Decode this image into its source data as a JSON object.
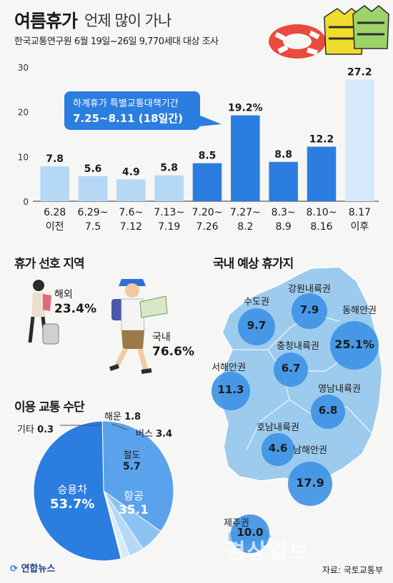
{
  "header": {
    "title_main": "여름휴가",
    "title_sub": "언제 많이 가나",
    "subtitle": "한국교통연구원 6월 19일~26일 9,770세대 대상 조사"
  },
  "callout": {
    "line1": "하계휴가 특별교통대책기간",
    "line2": "7.25~8.11 (18일간)"
  },
  "chart_data": [
    {
      "type": "bar",
      "categories": [
        "6.28 이전",
        "6.29~ 7.5",
        "7.6~ 7.12",
        "7.13~ 7.19",
        "7.20~ 7.26",
        "7.27~ 8.2",
        "8.3~ 8.9",
        "8.10~ 8.16",
        "8.17 이후"
      ],
      "category_lines": [
        [
          "6.28",
          "이전"
        ],
        [
          "6.29~",
          "7.5"
        ],
        [
          "7.6~",
          "7.12"
        ],
        [
          "7.13~",
          "7.19"
        ],
        [
          "7.20~",
          "7.26"
        ],
        [
          "7.27~",
          "8.2"
        ],
        [
          "8.3~",
          "8.9"
        ],
        [
          "8.10~",
          "8.16"
        ],
        [
          "8.17",
          "이후"
        ]
      ],
      "values": [
        7.8,
        5.6,
        4.9,
        5.8,
        8.5,
        19.2,
        8.8,
        12.2,
        27.2
      ],
      "value_labels": [
        "7.8",
        "5.6",
        "4.9",
        "5.8",
        "8.5",
        "19.2%",
        "8.8",
        "12.2",
        "27.2"
      ],
      "highlight": [
        false,
        false,
        false,
        false,
        true,
        true,
        true,
        true,
        false
      ],
      "yticks": [
        0,
        10,
        20,
        30
      ],
      "ylim": [
        0,
        30
      ],
      "grid": false
    },
    {
      "type": "pie",
      "title": "휴가 선호 지역",
      "labels": [
        "해외",
        "국내"
      ],
      "values": [
        23.4,
        76.6
      ],
      "value_labels": [
        "23.4%",
        "76.6%"
      ]
    },
    {
      "type": "pie",
      "title": "이용 교통 수단",
      "labels": [
        "승용차",
        "항공",
        "철도",
        "버스",
        "해운",
        "기타"
      ],
      "values": [
        53.7,
        35.1,
        5.7,
        3.4,
        1.8,
        0.3
      ],
      "value_labels": [
        "53.7%",
        "35.1",
        "5.7",
        "3.4",
        "1.8",
        "0.3"
      ],
      "colors": [
        "#2b7de0",
        "#5aa2ec",
        "#8cc2f2",
        "#b5d8f6",
        "#d7eafa",
        "#eef6fd"
      ]
    },
    {
      "type": "bubble",
      "title": "국내 예상 휴가지",
      "labels": [
        "강원내륙권",
        "수도권",
        "동해안권",
        "충청내륙권",
        "서해안권",
        "영남내륙권",
        "호남내륙권",
        "남해안권",
        "제주권"
      ],
      "values": [
        7.9,
        9.7,
        25.1,
        6.7,
        11.3,
        6.8,
        4.6,
        17.9,
        10.0
      ]
    }
  ],
  "colors": {
    "bar_light": "#b5d8f6",
    "bar_highlight": "#2b7de0",
    "bar_last": "#d6e9fa",
    "map": "#9ccbee",
    "bubble": "#3d92e4"
  },
  "sections": {
    "pref_title": "휴가 선호 지역",
    "overseas_label": "해외",
    "overseas_value": "23.4%",
    "domestic_label": "국내",
    "domestic_value": "76.6%",
    "transport_title": "이용 교통 수단",
    "dest_title": "국내 예상 휴가지"
  },
  "transport": {
    "car_label": "승용차",
    "car_value": "53.7%",
    "air_label": "항공",
    "air_value": "35.1",
    "rail_label": "철도",
    "rail_value": "5.7",
    "bus_label": "버스",
    "bus_value": "3.4",
    "ship_label": "해운",
    "ship_value": "1.8",
    "etc_label": "기타",
    "etc_value": "0.3"
  },
  "destinations": [
    {
      "label": "강원내륙권",
      "value": "7.9"
    },
    {
      "label": "수도권",
      "value": "9.7"
    },
    {
      "label": "동해안권",
      "value": "25.1%"
    },
    {
      "label": "충청내륙권",
      "value": "6.7"
    },
    {
      "label": "서해안권",
      "value": "11.3"
    },
    {
      "label": "영남내륙권",
      "value": "6.8"
    },
    {
      "label": "호남내륙권",
      "value": "4.6"
    },
    {
      "label": "남해안권",
      "value": "17.9"
    },
    {
      "label": "제주권",
      "value": "10.0"
    }
  ],
  "footer": {
    "source": "자료: 국토교통부",
    "logo": "연합뉴스",
    "watermark": "경상일보"
  }
}
